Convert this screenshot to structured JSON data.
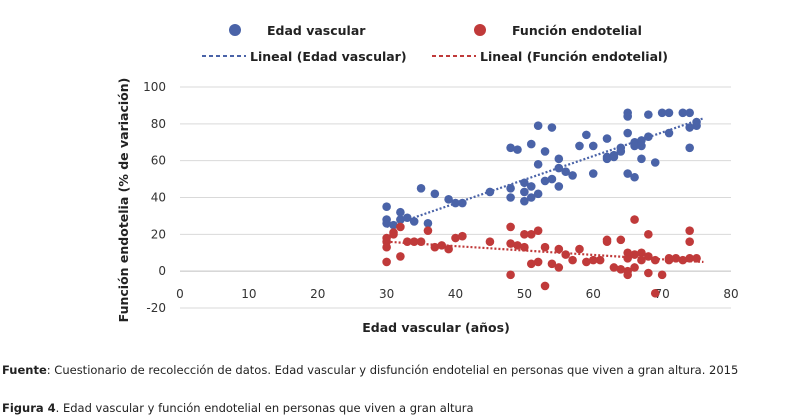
{
  "chart_data": {
    "type": "scatter",
    "xlabel": "Edad vascular (años)",
    "ylabel": "Función endotelia (% de variación)",
    "xlim": [
      0,
      80
    ],
    "ylim": [
      -20,
      100
    ],
    "xticks": [
      0,
      10,
      20,
      30,
      40,
      50,
      60,
      70,
      80
    ],
    "yticks": [
      -20,
      0,
      20,
      40,
      60,
      80,
      100
    ],
    "grid": "horizontal",
    "legend_position": "top",
    "series": [
      {
        "name": "Edad vascular",
        "color": "#4a63a8",
        "points": [
          [
            30,
            35
          ],
          [
            30,
            28
          ],
          [
            30,
            26
          ],
          [
            31,
            25
          ],
          [
            32,
            32
          ],
          [
            32,
            28
          ],
          [
            33,
            29
          ],
          [
            34,
            27
          ],
          [
            35,
            45
          ],
          [
            36,
            26
          ],
          [
            37,
            42
          ],
          [
            39,
            39
          ],
          [
            40,
            37
          ],
          [
            41,
            37
          ],
          [
            45,
            43
          ],
          [
            48,
            67
          ],
          [
            48,
            45
          ],
          [
            48,
            40
          ],
          [
            49,
            66
          ],
          [
            50,
            48
          ],
          [
            50,
            43
          ],
          [
            50,
            38
          ],
          [
            51,
            69
          ],
          [
            51,
            40
          ],
          [
            51,
            46
          ],
          [
            52,
            79
          ],
          [
            52,
            58
          ],
          [
            52,
            42
          ],
          [
            53,
            65
          ],
          [
            53,
            49
          ],
          [
            54,
            78
          ],
          [
            54,
            50
          ],
          [
            55,
            61
          ],
          [
            55,
            56
          ],
          [
            55,
            46
          ],
          [
            56,
            54
          ],
          [
            57,
            52
          ],
          [
            58,
            68
          ],
          [
            59,
            74
          ],
          [
            60,
            53
          ],
          [
            60,
            68
          ],
          [
            62,
            72
          ],
          [
            62,
            62
          ],
          [
            62,
            61
          ],
          [
            63,
            62
          ],
          [
            63,
            63
          ],
          [
            64,
            65
          ],
          [
            64,
            67
          ],
          [
            65,
            86
          ],
          [
            65,
            84
          ],
          [
            65,
            75
          ],
          [
            65,
            53
          ],
          [
            66,
            70
          ],
          [
            66,
            68
          ],
          [
            66,
            51
          ],
          [
            67,
            71
          ],
          [
            67,
            68
          ],
          [
            67,
            61
          ],
          [
            68,
            85
          ],
          [
            68,
            73
          ],
          [
            69,
            59
          ],
          [
            70,
            86
          ],
          [
            71,
            86
          ],
          [
            71,
            75
          ],
          [
            73,
            86
          ],
          [
            74,
            86
          ],
          [
            74,
            78
          ],
          [
            74,
            67
          ],
          [
            75,
            79
          ],
          [
            75,
            81
          ]
        ]
      },
      {
        "name": "Función endotelial",
        "color": "#c03a3a",
        "points": [
          [
            30,
            18
          ],
          [
            30,
            16
          ],
          [
            30,
            13
          ],
          [
            30,
            5
          ],
          [
            31,
            20
          ],
          [
            31,
            21
          ],
          [
            32,
            24
          ],
          [
            32,
            8
          ],
          [
            33,
            16
          ],
          [
            34,
            16
          ],
          [
            35,
            16
          ],
          [
            36,
            22
          ],
          [
            37,
            13
          ],
          [
            38,
            14
          ],
          [
            39,
            12
          ],
          [
            40,
            18
          ],
          [
            41,
            19
          ],
          [
            45,
            16
          ],
          [
            48,
            24
          ],
          [
            48,
            15
          ],
          [
            48,
            -2
          ],
          [
            49,
            14
          ],
          [
            50,
            20
          ],
          [
            50,
            13
          ],
          [
            51,
            20
          ],
          [
            51,
            4
          ],
          [
            52,
            22
          ],
          [
            52,
            5
          ],
          [
            53,
            -8
          ],
          [
            53,
            13
          ],
          [
            54,
            4
          ],
          [
            55,
            2
          ],
          [
            55,
            12
          ],
          [
            56,
            9
          ],
          [
            57,
            6
          ],
          [
            58,
            12
          ],
          [
            59,
            5
          ],
          [
            60,
            6
          ],
          [
            61,
            6
          ],
          [
            62,
            17
          ],
          [
            62,
            16
          ],
          [
            63,
            2
          ],
          [
            64,
            1
          ],
          [
            64,
            17
          ],
          [
            65,
            10
          ],
          [
            65,
            7
          ],
          [
            65,
            0
          ],
          [
            65,
            -2
          ],
          [
            66,
            28
          ],
          [
            66,
            9
          ],
          [
            66,
            2
          ],
          [
            67,
            10
          ],
          [
            67,
            6
          ],
          [
            68,
            20
          ],
          [
            68,
            8
          ],
          [
            68,
            -1
          ],
          [
            69,
            -12
          ],
          [
            69,
            6
          ],
          [
            70,
            -2
          ],
          [
            71,
            7
          ],
          [
            71,
            6
          ],
          [
            72,
            7
          ],
          [
            73,
            6
          ],
          [
            74,
            22
          ],
          [
            74,
            16
          ],
          [
            74,
            7
          ],
          [
            75,
            7
          ]
        ]
      }
    ],
    "trendlines": [
      {
        "name": "Lineal (Edad vascular)",
        "color": "#4a63a8",
        "from": [
          30,
          24
        ],
        "to": [
          76,
          83
        ]
      },
      {
        "name": "Lineal (Función endotelial)",
        "color": "#c03a3a",
        "from": [
          30,
          16
        ],
        "to": [
          76,
          5
        ]
      }
    ]
  },
  "captions": {
    "source_label": "Fuente",
    "source_text": ": Cuestionario de recolección de datos. Edad vascular y disfunción endotelial en personas que viven a gran altura. 2015",
    "figure_label": "Figura 4",
    "figure_text": ". Edad vascular y función endotelial en personas que viven a gran altura"
  }
}
